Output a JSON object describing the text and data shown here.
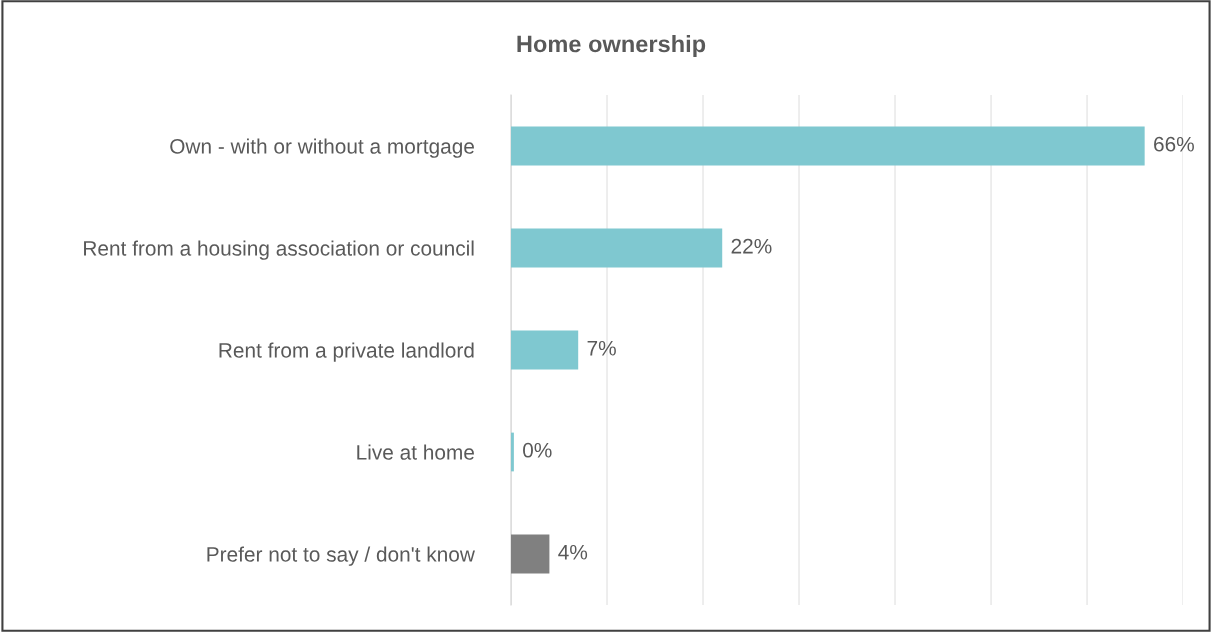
{
  "chart_data": {
    "type": "bar",
    "orientation": "horizontal",
    "title": "Home ownership",
    "categories": [
      "Own - with or without a mortgage",
      "Rent from a housing association or council",
      "Rent from a private landlord",
      "Live at home",
      "Prefer not to say / don't know"
    ],
    "values": [
      66,
      22,
      7,
      0.3,
      4
    ],
    "colors": [
      "#7fc8d0",
      "#7fc8d0",
      "#7fc8d0",
      "#7fc8d0",
      "#808080"
    ],
    "value_labels": [
      "66%",
      "22%",
      "7%",
      "0%",
      "4%"
    ],
    "xlim": [
      0,
      70
    ],
    "xticks": [
      {
        "value": 0,
        "label": null
      },
      {
        "value": 10,
        "label": null
      },
      {
        "value": 20,
        "label": null
      },
      {
        "value": 30,
        "label": null
      },
      {
        "value": 40,
        "label": null
      },
      {
        "value": 50,
        "label": null
      },
      {
        "value": 60,
        "label": null
      },
      {
        "value": 70,
        "label": null
      }
    ],
    "tick_labels": "y",
    "grid": "x"
  }
}
